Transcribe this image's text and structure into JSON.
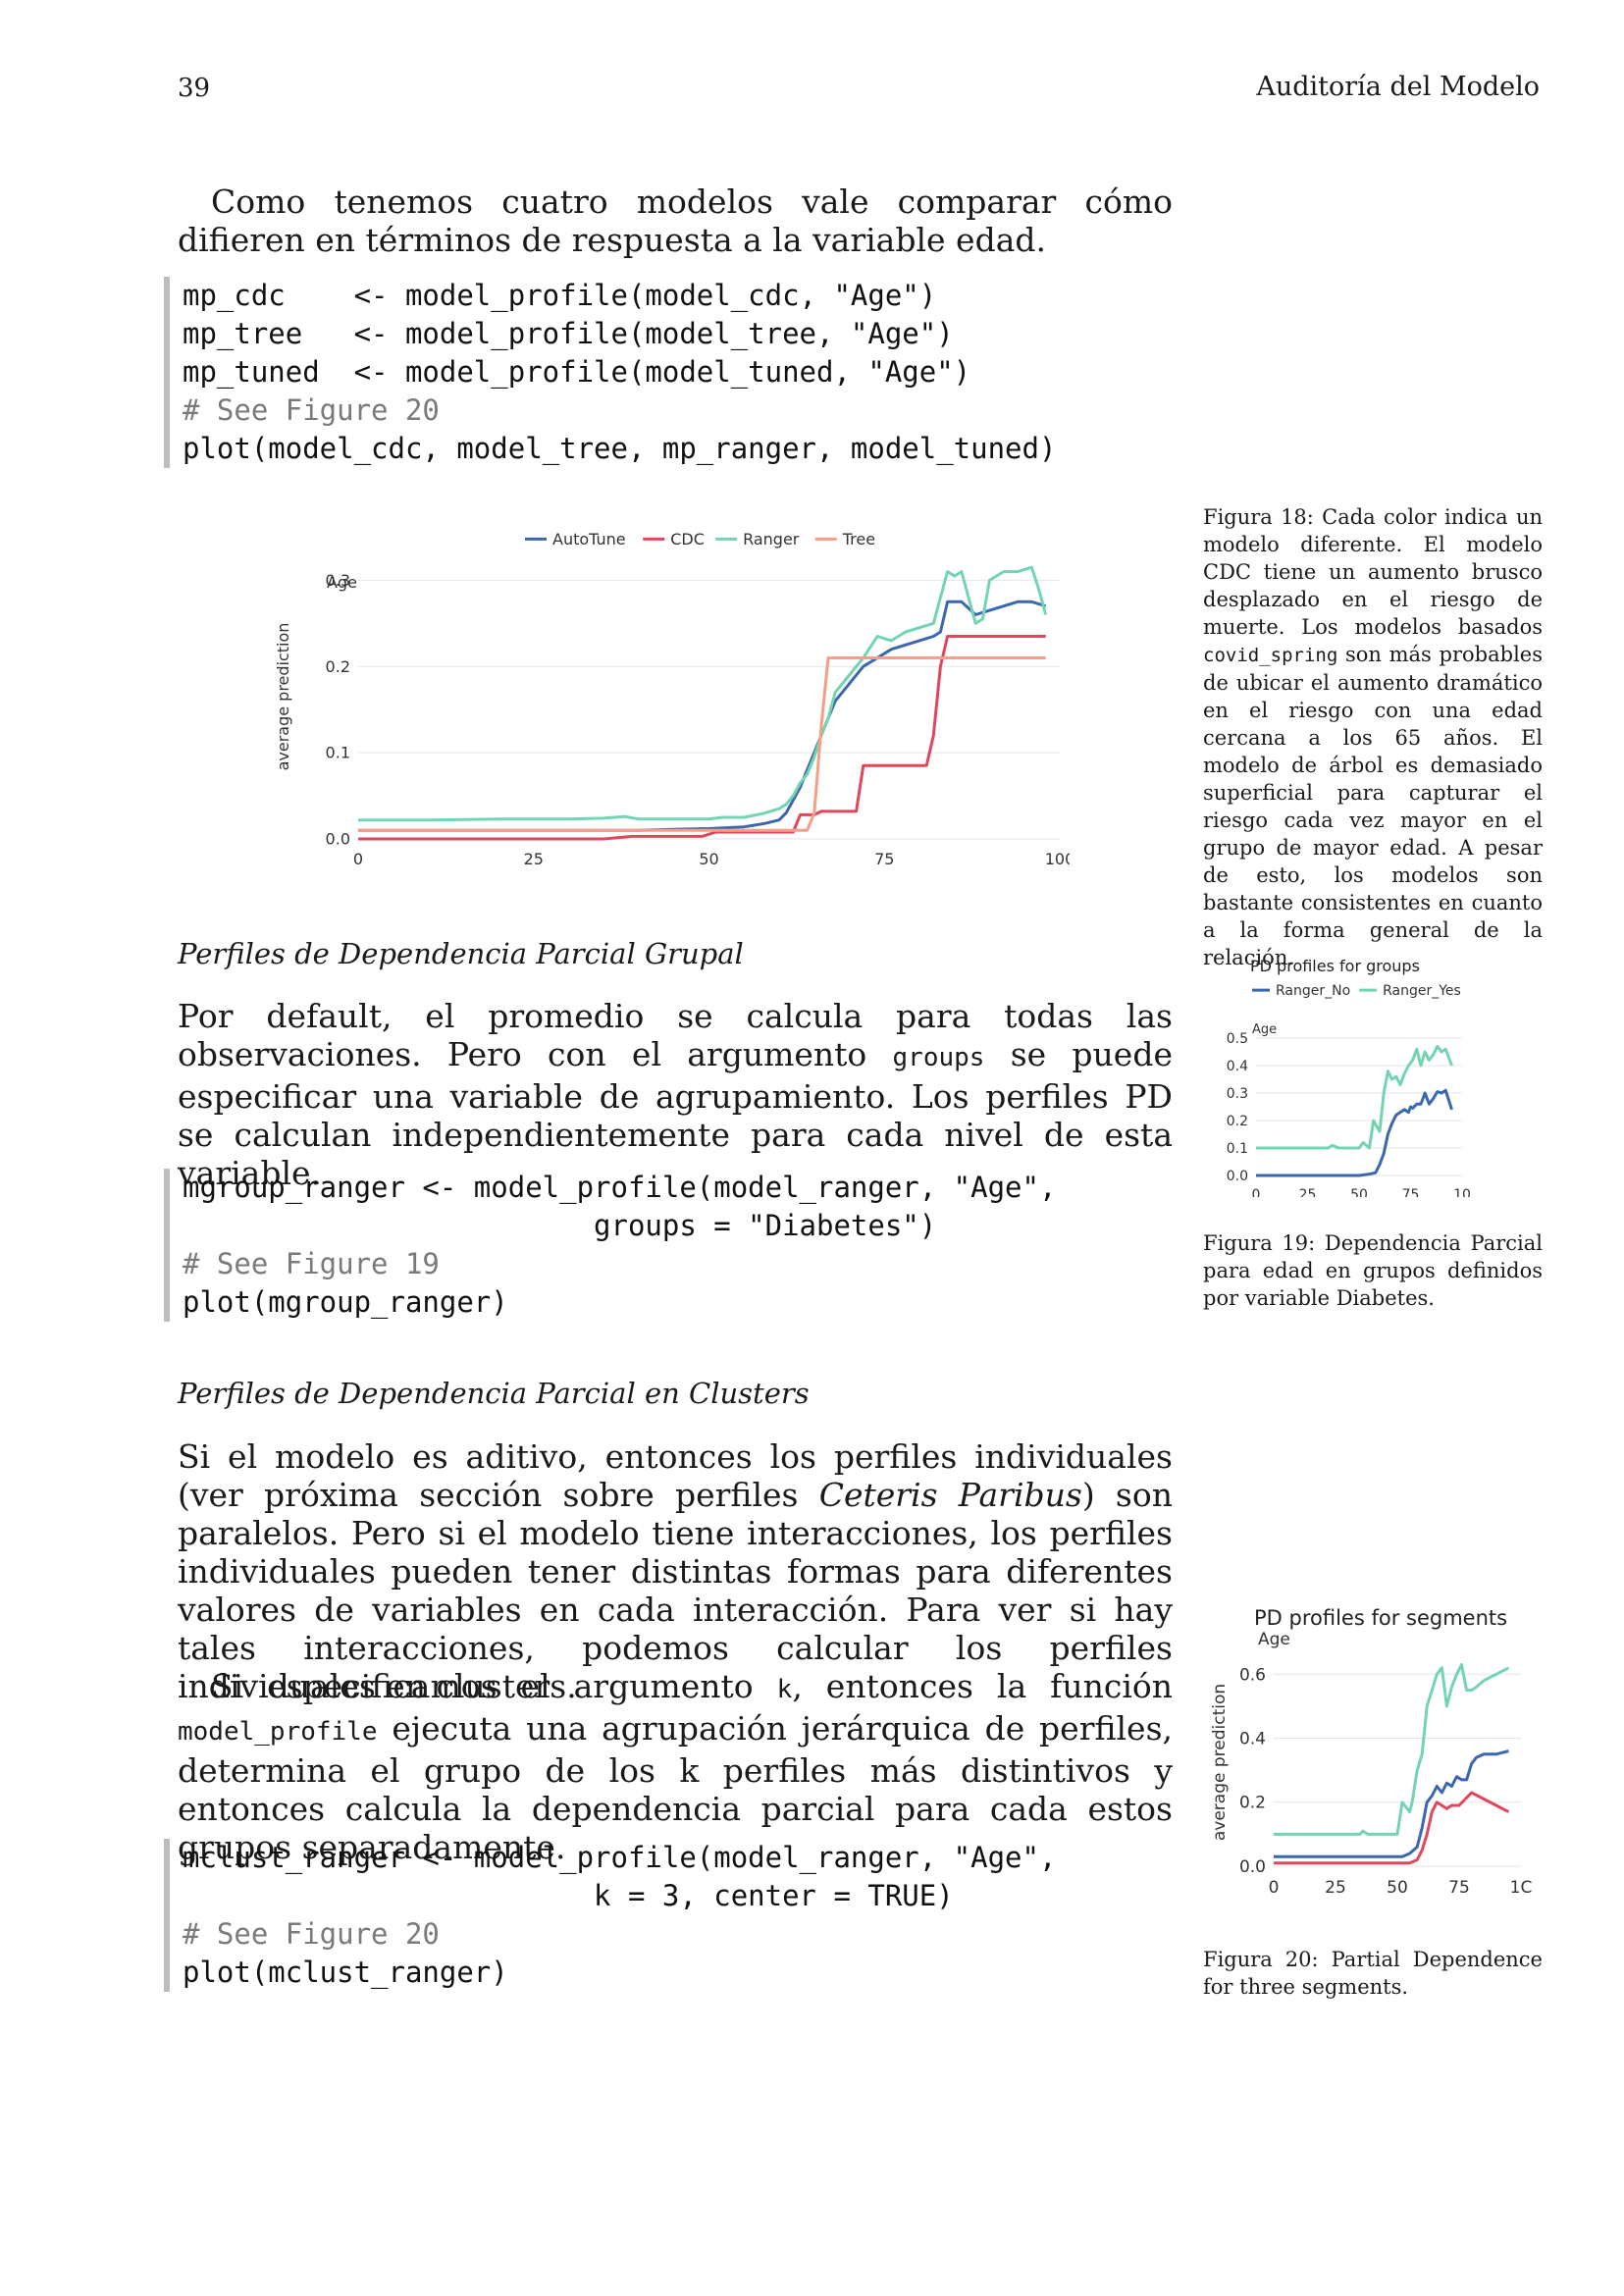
{
  "header": {
    "page_number": "39",
    "title": "Auditoría del Modelo"
  },
  "intro": {
    "text": "Como tenemos cuatro modelos vale comparar cómo difieren en términos de respuesta a la variable edad."
  },
  "code1": {
    "lines": [
      "mp_cdc    <- model_profile(model_cdc, \"Age\")",
      "mp_tree   <- model_profile(model_tree, \"Age\")",
      "mp_tuned  <- model_profile(model_tuned, \"Age\")",
      "# See Figure 20",
      "plot(model_cdc, model_tree, mp_ranger, model_tuned)"
    ]
  },
  "section1": {
    "title": "Perfiles de Dependencia Parcial Grupal"
  },
  "para2": {
    "before": "Por default, el promedio se calcula para todas las observaciones. Pero con el argumento ",
    "code": "groups",
    "after": " se puede especificar una variable de agrupamiento. Los perfiles PD se calculan independientemente para cada nivel de esta variable."
  },
  "code2": {
    "lines": [
      "mgroup_ranger <- model_profile(model_ranger, \"Age\",",
      "                        groups = \"Diabetes\")",
      "# See Figure 19",
      "plot(mgroup_ranger)"
    ]
  },
  "section2": {
    "title": "Perfiles de Dependencia Parcial en Clusters"
  },
  "para3": {
    "before": "Si el modelo es aditivo, entonces los perfiles individuales (ver próxima sección sobre perfiles ",
    "italic": "Ceteris Paribus",
    "after": ") son paralelos. Pero si el modelo tiene interacciones, los perfiles individuales pueden tener distintas formas para diferentes valores de variables en cada interacción. Para ver si hay tales interacciones, podemos calcular los perfiles individuales en clusters."
  },
  "para4": {
    "p1": "Si especificamos el argumento ",
    "c1": "k",
    "p2": ", entonces la función ",
    "c2": "model_profile",
    "p3": " ejecuta una agrupación jerárquica de perfiles, determina el grupo de los k perfiles más distintivos y entonces calcula la dependencia parcial para cada estos grupos separadamente."
  },
  "code3": {
    "lines": [
      "mclust_ranger <- model_profile(model_ranger, \"Age\",",
      "                        k = 3, center = TRUE)",
      "# See Figure 20",
      "plot(mclust_ranger)"
    ]
  },
  "captions": {
    "fig18": {
      "p1": "Figura 18: Cada color indica un modelo diferente. El modelo CDC tiene un aumento brusco desplazado en el riesgo de muerte. Los modelos basados ",
      "code": "covid_spring",
      "p2": " son más probables de ubicar el aumento dramático en el riesgo con una edad cercana a los 65 años. El modelo de árbol es demasiado superficial para capturar el riesgo cada vez mayor en el grupo de mayor edad. A pesar de esto, los modelos son bastante consistentes en cuanto a la forma general de la relación."
    },
    "fig19": {
      "text": "Figura 19: Dependencia Parcial para edad en grupos definidos por variable Diabetes."
    },
    "fig20": {
      "text": "Figura 20: Partial Dependence for three segments."
    }
  },
  "chart_data": [
    {
      "type": "line",
      "title": "",
      "subtitle": "Age",
      "xlabel": "",
      "ylabel": "average prediction",
      "xlim": [
        0,
        100
      ],
      "ylim": [
        0,
        0.33
      ],
      "xticks": [
        "0",
        "25",
        "50",
        "75",
        "100"
      ],
      "yticks": [
        "0.0",
        "0.1",
        "0.2",
        "0.3"
      ],
      "legend_position": "top",
      "grid": true,
      "series": [
        {
          "name": "AutoTune",
          "color": "#3a67b0",
          "x": [
            0,
            10,
            20,
            30,
            40,
            45,
            50,
            55,
            58,
            60,
            61,
            62,
            63,
            64,
            65,
            66,
            67,
            68,
            70,
            72,
            74,
            76,
            78,
            80,
            82,
            83,
            84,
            86,
            88,
            90,
            92,
            94,
            96,
            98
          ],
          "y": [
            0.01,
            0.01,
            0.01,
            0.01,
            0.01,
            0.011,
            0.012,
            0.014,
            0.018,
            0.022,
            0.03,
            0.045,
            0.06,
            0.08,
            0.1,
            0.12,
            0.14,
            0.16,
            0.18,
            0.2,
            0.21,
            0.22,
            0.225,
            0.23,
            0.235,
            0.24,
            0.275,
            0.275,
            0.26,
            0.265,
            0.27,
            0.275,
            0.275,
            0.27
          ]
        },
        {
          "name": "CDC",
          "color": "#e0475c",
          "x": [
            0,
            35,
            39,
            49,
            51,
            62,
            63,
            65,
            66,
            71,
            72,
            81,
            82,
            83,
            84,
            98
          ],
          "y": [
            0,
            0,
            0.003,
            0.003,
            0.008,
            0.008,
            0.028,
            0.028,
            0.032,
            0.032,
            0.085,
            0.085,
            0.12,
            0.2,
            0.235,
            0.235
          ]
        },
        {
          "name": "Ranger",
          "color": "#72d5b0",
          "x": [
            0,
            10,
            20,
            30,
            35,
            38,
            40,
            45,
            50,
            52,
            55,
            58,
            60,
            61,
            62,
            63,
            64,
            65,
            66,
            67,
            68,
            70,
            72,
            74,
            76,
            78,
            80,
            82,
            83,
            84,
            85,
            86,
            87,
            88,
            89,
            90,
            92,
            94,
            96,
            97,
            98
          ],
          "y": [
            0.022,
            0.022,
            0.023,
            0.023,
            0.024,
            0.026,
            0.023,
            0.023,
            0.023,
            0.025,
            0.025,
            0.03,
            0.035,
            0.04,
            0.05,
            0.065,
            0.075,
            0.095,
            0.12,
            0.14,
            0.17,
            0.19,
            0.21,
            0.235,
            0.23,
            0.24,
            0.245,
            0.25,
            0.28,
            0.31,
            0.305,
            0.31,
            0.28,
            0.25,
            0.255,
            0.3,
            0.31,
            0.31,
            0.315,
            0.29,
            0.26
          ]
        },
        {
          "name": "Tree",
          "color": "#f99e86",
          "x": [
            0,
            49,
            50,
            64,
            65,
            66,
            67,
            98
          ],
          "y": [
            0.01,
            0.01,
            0.01,
            0.01,
            0.03,
            0.13,
            0.21,
            0.21
          ]
        }
      ]
    },
    {
      "type": "line",
      "title": "PD profiles for groups",
      "subtitle": "Age",
      "xlabel": "",
      "ylabel": "",
      "xlim": [
        0,
        100
      ],
      "ylim": [
        0,
        0.5
      ],
      "xticks": [
        "0",
        "25",
        "50",
        "75",
        "10"
      ],
      "yticks": [
        "0.0",
        "0.1",
        "0.2",
        "0.3",
        "0.4",
        "0.5"
      ],
      "legend_position": "top",
      "grid": true,
      "series": [
        {
          "name": "Ranger_No",
          "color": "#3a67b0",
          "x": [
            0,
            20,
            40,
            50,
            55,
            58,
            60,
            62,
            64,
            66,
            68,
            70,
            72,
            74,
            75,
            76,
            78,
            80,
            82,
            84,
            86,
            88,
            90,
            92,
            95
          ],
          "y": [
            0.0,
            0.0,
            0.0,
            0.0,
            0.005,
            0.01,
            0.04,
            0.08,
            0.15,
            0.19,
            0.22,
            0.23,
            0.24,
            0.23,
            0.25,
            0.245,
            0.26,
            0.26,
            0.3,
            0.26,
            0.28,
            0.305,
            0.3,
            0.31,
            0.24
          ]
        },
        {
          "name": "Ranger_Yes",
          "color": "#72d5b0",
          "x": [
            0,
            20,
            35,
            37,
            40,
            45,
            50,
            52,
            55,
            57,
            60,
            62,
            64,
            66,
            68,
            70,
            72,
            74,
            76,
            78,
            80,
            82,
            84,
            86,
            88,
            90,
            92,
            95
          ],
          "y": [
            0.1,
            0.1,
            0.1,
            0.11,
            0.1,
            0.1,
            0.1,
            0.12,
            0.1,
            0.2,
            0.16,
            0.3,
            0.38,
            0.35,
            0.36,
            0.33,
            0.37,
            0.4,
            0.42,
            0.46,
            0.4,
            0.45,
            0.42,
            0.44,
            0.47,
            0.45,
            0.46,
            0.4
          ]
        }
      ]
    },
    {
      "type": "line",
      "title": "PD profiles for segments",
      "subtitle": "Age",
      "xlabel": "",
      "ylabel": "average prediction",
      "xlim": [
        0,
        100
      ],
      "ylim": [
        0,
        0.65
      ],
      "xticks": [
        "0",
        "25",
        "50",
        "75",
        "1C"
      ],
      "yticks": [
        "0.0",
        "0.2",
        "0.4",
        "0.6"
      ],
      "legend_position": "none",
      "grid": true,
      "series": [
        {
          "name": "",
          "color": "#72d5b0",
          "x": [
            0,
            20,
            35,
            36,
            38,
            40,
            45,
            50,
            52,
            55,
            56,
            58,
            60,
            62,
            64,
            66,
            68,
            70,
            72,
            74,
            76,
            78,
            80,
            82,
            85,
            90,
            95
          ],
          "y": [
            0.1,
            0.1,
            0.1,
            0.11,
            0.1,
            0.1,
            0.1,
            0.1,
            0.2,
            0.17,
            0.2,
            0.3,
            0.35,
            0.5,
            0.55,
            0.6,
            0.62,
            0.5,
            0.56,
            0.6,
            0.63,
            0.55,
            0.55,
            0.56,
            0.58,
            0.6,
            0.62
          ]
        },
        {
          "name": "",
          "color": "#3a67b0",
          "x": [
            0,
            20,
            40,
            50,
            52,
            55,
            58,
            60,
            62,
            64,
            66,
            68,
            70,
            72,
            74,
            76,
            78,
            80,
            82,
            85,
            90,
            95
          ],
          "y": [
            0.03,
            0.03,
            0.03,
            0.03,
            0.03,
            0.04,
            0.06,
            0.12,
            0.2,
            0.22,
            0.25,
            0.23,
            0.26,
            0.25,
            0.28,
            0.27,
            0.27,
            0.32,
            0.34,
            0.35,
            0.35,
            0.36
          ]
        },
        {
          "name": "",
          "color": "#e0475c",
          "x": [
            0,
            20,
            40,
            50,
            55,
            58,
            60,
            62,
            64,
            66,
            68,
            70,
            72,
            75,
            80,
            85,
            90,
            95
          ],
          "y": [
            0.01,
            0.01,
            0.01,
            0.01,
            0.01,
            0.02,
            0.05,
            0.1,
            0.17,
            0.2,
            0.19,
            0.18,
            0.19,
            0.19,
            0.23,
            0.21,
            0.19,
            0.17
          ]
        }
      ]
    }
  ]
}
